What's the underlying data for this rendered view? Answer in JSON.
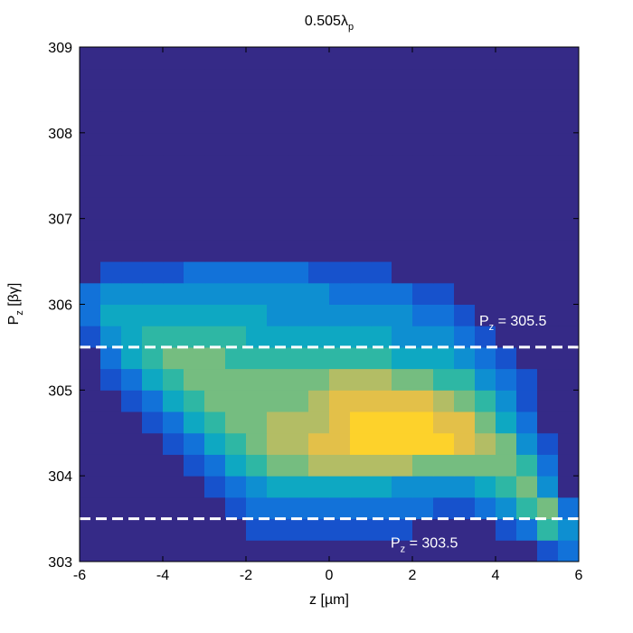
{
  "chart_data": {
    "type": "heatmap",
    "title": "0.505λ",
    "title_subscript": "p",
    "x_label": "z [µm]",
    "y_label": "P",
    "y_label_subscript": "z",
    "y_label_suffix": " [βγ]",
    "xlim": [
      -6,
      6
    ],
    "xticks": [
      -6,
      -4,
      -2,
      0,
      2,
      4,
      6
    ],
    "ylim": [
      303,
      309
    ],
    "yticks": [
      303,
      304,
      305,
      306,
      307,
      308,
      309
    ],
    "xbins": [
      -6,
      -5.5,
      -5,
      -4.5,
      -4,
      -3.5,
      -3,
      -2.5,
      -2,
      -1.5,
      -1,
      -0.5,
      0,
      0.5,
      1,
      1.5,
      2,
      2.5,
      3,
      3.5,
      4,
      4.5,
      5,
      5.5,
      6
    ],
    "ybins": [
      303,
      303.25,
      303.5,
      303.75,
      304,
      304.25,
      304.5,
      304.75,
      305,
      305.25,
      305.5,
      305.75,
      306,
      306.25,
      306.5,
      306.75,
      307,
      307.25,
      307.5,
      307.75,
      308,
      308.25,
      308.5,
      308.75,
      309
    ],
    "zlim": [
      0,
      10
    ],
    "colormap": [
      "#352a87",
      "#0f5cdd",
      "#1481d6",
      "#06a4ca",
      "#2eb7a4",
      "#87bf77",
      "#d1bb59",
      "#fec832",
      "#f9fb0e"
    ],
    "z": [
      [
        0,
        0,
        0,
        0,
        0,
        0,
        0,
        0,
        0,
        0,
        0,
        0,
        0,
        0,
        0,
        0,
        0,
        0,
        0,
        0,
        0,
        0,
        1,
        2
      ],
      [
        0,
        0,
        0,
        0,
        0,
        0,
        0,
        0,
        1,
        1,
        1,
        1,
        1,
        1,
        1,
        1,
        0,
        0,
        0,
        0,
        1,
        2,
        5,
        3
      ],
      [
        0,
        0,
        0,
        0,
        0,
        0,
        0,
        1,
        2,
        2,
        2,
        2,
        2,
        2,
        2,
        2,
        2,
        1,
        1,
        2,
        3,
        5,
        6,
        2
      ],
      [
        0,
        0,
        0,
        0,
        0,
        0,
        1,
        2,
        3,
        4,
        4,
        4,
        4,
        4,
        4,
        3,
        3,
        3,
        3,
        4,
        5,
        6,
        3,
        0
      ],
      [
        0,
        0,
        0,
        0,
        0,
        1,
        2,
        4,
        5,
        6,
        6,
        7,
        7,
        7,
        7,
        7,
        6,
        6,
        6,
        6,
        6,
        5,
        2,
        0
      ],
      [
        0,
        0,
        0,
        0,
        1,
        2,
        4,
        5,
        6,
        7,
        7,
        8,
        8,
        9,
        9,
        9,
        9,
        9,
        8,
        7,
        6,
        3,
        1,
        0
      ],
      [
        0,
        0,
        0,
        1,
        2,
        4,
        5,
        6,
        6,
        7,
        7,
        7,
        8,
        9,
        9,
        9,
        9,
        8,
        8,
        6,
        4,
        2,
        0,
        0
      ],
      [
        0,
        0,
        1,
        2,
        4,
        5,
        6,
        6,
        6,
        6,
        6,
        7,
        8,
        8,
        8,
        8,
        8,
        7,
        6,
        5,
        3,
        1,
        0,
        0
      ],
      [
        0,
        1,
        2,
        4,
        5,
        6,
        6,
        6,
        6,
        6,
        6,
        6,
        7,
        7,
        7,
        6,
        6,
        5,
        5,
        3,
        2,
        1,
        0,
        0
      ],
      [
        0,
        2,
        4,
        5,
        6,
        6,
        6,
        5,
        5,
        5,
        5,
        5,
        5,
        5,
        5,
        4,
        4,
        4,
        3,
        2,
        1,
        0,
        0,
        0
      ],
      [
        1,
        3,
        4,
        5,
        5,
        5,
        5,
        5,
        4,
        4,
        4,
        4,
        4,
        4,
        4,
        3,
        3,
        3,
        2,
        1,
        0,
        0,
        0,
        0
      ],
      [
        2,
        4,
        4,
        4,
        4,
        4,
        4,
        4,
        4,
        3,
        3,
        3,
        3,
        3,
        3,
        3,
        2,
        2,
        1,
        0,
        0,
        0,
        0,
        0
      ],
      [
        2,
        3,
        3,
        3,
        3,
        3,
        3,
        3,
        3,
        3,
        3,
        3,
        2,
        2,
        2,
        2,
        1,
        1,
        0,
        0,
        0,
        0,
        0,
        0
      ],
      [
        0,
        1,
        1,
        1,
        1,
        2,
        2,
        2,
        2,
        2,
        2,
        1,
        1,
        1,
        1,
        0,
        0,
        0,
        0,
        0,
        0,
        0,
        0,
        0
      ],
      [
        0,
        0,
        0,
        0,
        0,
        0,
        0,
        0,
        0,
        0,
        0,
        0,
        0,
        0,
        0,
        0,
        0,
        0,
        0,
        0,
        0,
        0,
        0,
        0
      ],
      [
        0,
        0,
        0,
        0,
        0,
        0,
        0,
        0,
        0,
        0,
        0,
        0,
        0,
        0,
        0,
        0,
        0,
        0,
        0,
        0,
        0,
        0,
        0,
        0
      ],
      [
        0,
        0,
        0,
        0,
        0,
        0,
        0,
        0,
        0,
        0,
        0,
        0,
        0,
        0,
        0,
        0,
        0,
        0,
        0,
        0,
        0,
        0,
        0,
        0
      ],
      [
        0,
        0,
        0,
        0,
        0,
        0,
        0,
        0,
        0,
        0,
        0,
        0,
        0,
        0,
        0,
        0,
        0,
        0,
        0,
        0,
        0,
        0,
        0,
        0
      ],
      [
        0,
        0,
        0,
        0,
        0,
        0,
        0,
        0,
        0,
        0,
        0,
        0,
        0,
        0,
        0,
        0,
        0,
        0,
        0,
        0,
        0,
        0,
        0,
        0
      ],
      [
        0,
        0,
        0,
        0,
        0,
        0,
        0,
        0,
        0,
        0,
        0,
        0,
        0,
        0,
        0,
        0,
        0,
        0,
        0,
        0,
        0,
        0,
        0,
        0
      ],
      [
        0,
        0,
        0,
        0,
        0,
        0,
        0,
        0,
        0,
        0,
        0,
        0,
        0,
        0,
        0,
        0,
        0,
        0,
        0,
        0,
        0,
        0,
        0,
        0
      ],
      [
        0,
        0,
        0,
        0,
        0,
        0,
        0,
        0,
        0,
        0,
        0,
        0,
        0,
        0,
        0,
        0,
        0,
        0,
        0,
        0,
        0,
        0,
        0,
        0
      ],
      [
        0,
        0,
        0,
        0,
        0,
        0,
        0,
        0,
        0,
        0,
        0,
        0,
        0,
        0,
        0,
        0,
        0,
        0,
        0,
        0,
        0,
        0,
        0,
        0
      ],
      [
        0,
        0,
        0,
        0,
        0,
        0,
        0,
        0,
        0,
        0,
        0,
        0,
        0,
        0,
        0,
        0,
        0,
        0,
        0,
        0,
        0,
        0,
        0,
        0
      ]
    ],
    "annotations": [
      {
        "value": 305.5,
        "text": "P",
        "subscript": "z",
        "suffix": " = 305.5"
      },
      {
        "value": 303.5,
        "text": "P",
        "subscript": "z",
        "suffix": " = 303.5"
      }
    ],
    "line_color": "#ffffff"
  }
}
